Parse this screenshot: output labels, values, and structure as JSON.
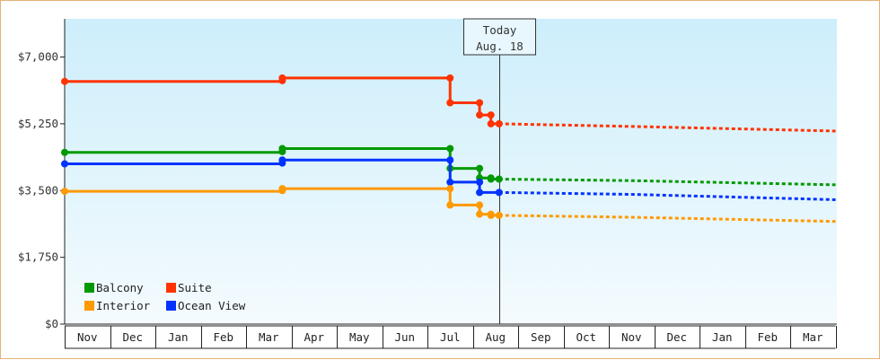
{
  "chart_data": {
    "type": "line",
    "title": "",
    "xlabel": "",
    "ylabel": "",
    "ylim": [
      0,
      8000
    ],
    "yticks": [
      {
        "value": 0,
        "label": "$0"
      },
      {
        "value": 1750,
        "label": "$1,750"
      },
      {
        "value": 3500,
        "label": "$3,500"
      },
      {
        "value": 5250,
        "label": "$5,250"
      },
      {
        "value": 7000,
        "label": "$7,000"
      }
    ],
    "months": [
      "Nov",
      "Dec",
      "Jan",
      "Feb",
      "Mar",
      "Apr",
      "May",
      "Jun",
      "Jul",
      "Aug",
      "Sep",
      "Oct",
      "Nov",
      "Dec",
      "Jan",
      "Feb",
      "Mar"
    ],
    "x_unit": "month index (0 = start of Nov)",
    "xlim": [
      0,
      17
    ],
    "grid": false,
    "legend_position": "bottom-left",
    "today": {
      "line1": "Today",
      "line2": "Aug. 18",
      "x": 9.58
    },
    "series": [
      {
        "name": "Suite",
        "color": "#ff3300",
        "history": [
          [
            0,
            6360
          ],
          [
            4.8,
            6360
          ],
          [
            4.8,
            6450
          ],
          [
            8.5,
            6450
          ],
          [
            8.5,
            5800
          ],
          [
            9.15,
            5800
          ],
          [
            9.15,
            5480
          ],
          [
            9.4,
            5480
          ],
          [
            9.4,
            5250
          ],
          [
            9.58,
            5250
          ]
        ],
        "points": [
          [
            0,
            6360
          ],
          [
            4.8,
            6380
          ],
          [
            4.8,
            6450
          ],
          [
            8.5,
            6450
          ],
          [
            8.5,
            5800
          ],
          [
            9.15,
            5800
          ],
          [
            9.15,
            5480
          ],
          [
            9.4,
            5480
          ],
          [
            9.4,
            5250
          ],
          [
            9.58,
            5250
          ]
        ],
        "forecast": [
          [
            9.58,
            5250
          ],
          [
            12.5,
            5180
          ],
          [
            17,
            5060
          ]
        ]
      },
      {
        "name": "Balcony",
        "color": "#009900",
        "history": [
          [
            0,
            4500
          ],
          [
            4.8,
            4500
          ],
          [
            4.8,
            4600
          ],
          [
            8.5,
            4600
          ],
          [
            8.5,
            4080
          ],
          [
            9.15,
            4080
          ],
          [
            9.15,
            3830
          ],
          [
            9.4,
            3830
          ],
          [
            9.4,
            3800
          ],
          [
            9.58,
            3800
          ]
        ],
        "points": [
          [
            0,
            4500
          ],
          [
            4.8,
            4520
          ],
          [
            4.8,
            4600
          ],
          [
            8.5,
            4600
          ],
          [
            8.5,
            4080
          ],
          [
            9.15,
            4080
          ],
          [
            9.15,
            3830
          ],
          [
            9.4,
            3830
          ],
          [
            9.4,
            3800
          ],
          [
            9.58,
            3800
          ]
        ],
        "forecast": [
          [
            9.58,
            3800
          ],
          [
            12.5,
            3760
          ],
          [
            17,
            3650
          ]
        ]
      },
      {
        "name": "Ocean View",
        "color": "#0033ff",
        "history": [
          [
            0,
            4200
          ],
          [
            4.8,
            4200
          ],
          [
            4.8,
            4300
          ],
          [
            8.5,
            4300
          ],
          [
            8.5,
            3720
          ],
          [
            9.15,
            3720
          ],
          [
            9.15,
            3450
          ],
          [
            9.58,
            3450
          ]
        ],
        "points": [
          [
            0,
            4200
          ],
          [
            4.8,
            4220
          ],
          [
            4.8,
            4300
          ],
          [
            8.5,
            4300
          ],
          [
            8.5,
            3720
          ],
          [
            9.15,
            3720
          ],
          [
            9.15,
            3450
          ],
          [
            9.58,
            3450
          ]
        ],
        "forecast": [
          [
            9.58,
            3450
          ],
          [
            12.5,
            3400
          ],
          [
            17,
            3260
          ]
        ]
      },
      {
        "name": "Interior",
        "color": "#ff9900",
        "history": [
          [
            0,
            3480
          ],
          [
            4.8,
            3480
          ],
          [
            4.8,
            3550
          ],
          [
            8.5,
            3550
          ],
          [
            8.5,
            3120
          ],
          [
            9.15,
            3120
          ],
          [
            9.15,
            2880
          ],
          [
            9.4,
            2880
          ],
          [
            9.4,
            2850
          ],
          [
            9.58,
            2850
          ]
        ],
        "points": [
          [
            0,
            3480
          ],
          [
            4.8,
            3500
          ],
          [
            4.8,
            3550
          ],
          [
            8.5,
            3550
          ],
          [
            8.5,
            3120
          ],
          [
            9.15,
            3120
          ],
          [
            9.15,
            2880
          ],
          [
            9.4,
            2880
          ],
          [
            9.4,
            2850
          ],
          [
            9.58,
            2850
          ]
        ],
        "forecast": [
          [
            9.58,
            2850
          ],
          [
            12.5,
            2800
          ],
          [
            17,
            2690
          ]
        ]
      }
    ]
  },
  "legend": {
    "items": [
      {
        "label": "Balcony",
        "color": "#009900"
      },
      {
        "label": "Suite",
        "color": "#ff3300"
      },
      {
        "label": "Interior",
        "color": "#ff9900"
      },
      {
        "label": "Ocean View",
        "color": "#0033ff"
      }
    ]
  }
}
